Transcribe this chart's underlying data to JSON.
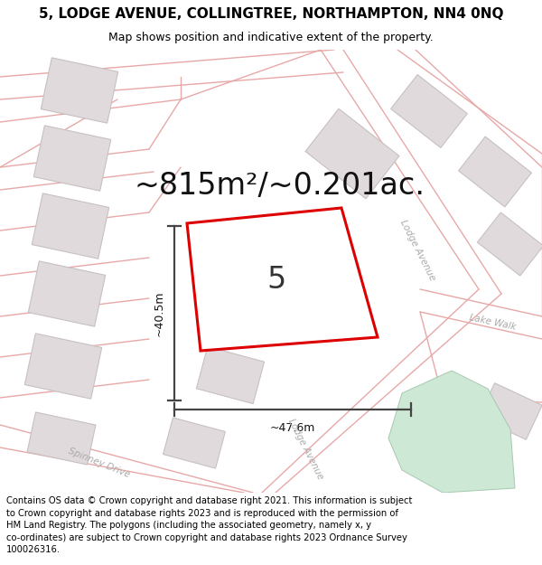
{
  "title_line1": "5, LODGE AVENUE, COLLINGTREE, NORTHAMPTON, NN4 0NQ",
  "title_line2": "Map shows position and indicative extent of the property.",
  "area_text": "~815m²/~0.201ac.",
  "property_number": "5",
  "dim_vertical": "~40.5m",
  "dim_horizontal": "~47.6m",
  "footer_text": "Contains OS data © Crown copyright and database right 2021. This information is subject\nto Crown copyright and database rights 2023 and is reproduced with the permission of\nHM Land Registry. The polygons (including the associated geometry, namely x, y\nco-ordinates) are subject to Crown copyright and database rights 2023 Ordnance Survey\n100026316.",
  "bg_color": "#ffffff",
  "map_bg": "#f5f0f0",
  "road_color": "#e8a8a8",
  "building_fc": "#e0dadc",
  "building_ec": "#c8c0c0",
  "property_outline_color": "#dd0000",
  "property_fill_color": "#ffffff",
  "green_area_color": "#cde8d4",
  "dim_color": "#444444",
  "title_fontsize": 11,
  "subtitle_fontsize": 9,
  "area_fontsize": 24,
  "number_fontsize": 24,
  "dim_fontsize": 9,
  "footer_fontsize": 7.2,
  "road_label_fontsize": 7.5
}
